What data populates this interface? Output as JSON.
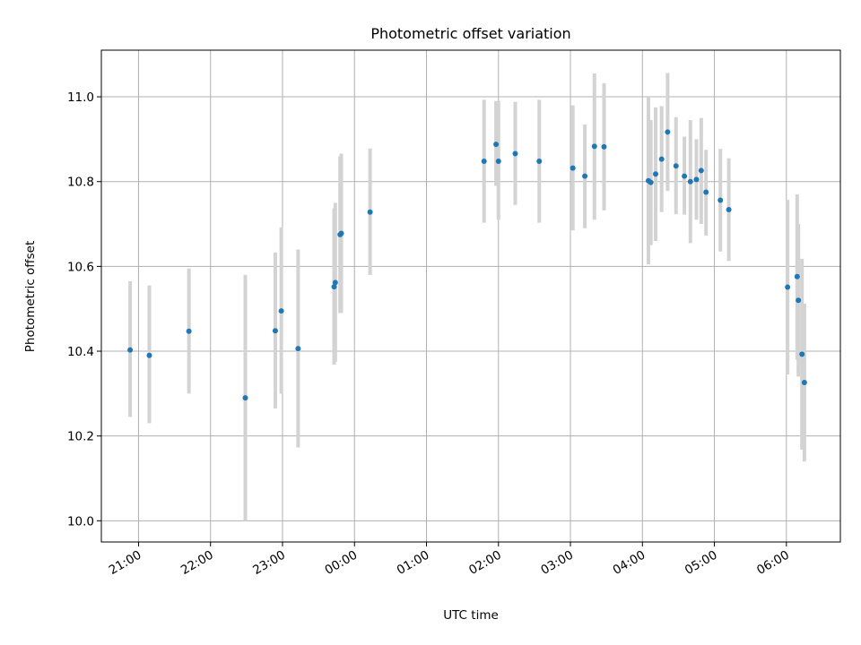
{
  "chart_data": {
    "type": "scatter",
    "title": "Photometric offset variation",
    "xlabel": "UTC time",
    "ylabel": "Photometric offset",
    "x_unit": "UTC hours (times after midnight continue past 24)",
    "xlim": [
      "20:29",
      "30:45"
    ],
    "ylim": [
      9.95,
      11.11
    ],
    "x_ticks": [
      {
        "t": "21:00",
        "label": "21:00"
      },
      {
        "t": "22:00",
        "label": "22:00"
      },
      {
        "t": "23:00",
        "label": "23:00"
      },
      {
        "t": "24:00",
        "label": "00:00"
      },
      {
        "t": "25:00",
        "label": "01:00"
      },
      {
        "t": "26:00",
        "label": "02:00"
      },
      {
        "t": "27:00",
        "label": "03:00"
      },
      {
        "t": "28:00",
        "label": "04:00"
      },
      {
        "t": "29:00",
        "label": "05:00"
      },
      {
        "t": "30:00",
        "label": "06:00"
      }
    ],
    "y_ticks": [
      10.0,
      10.2,
      10.4,
      10.6,
      10.8,
      11.0
    ],
    "y_tick_labels": [
      "10.0",
      "10.2",
      "10.4",
      "10.6",
      "10.8",
      "11.0"
    ],
    "grid": true,
    "legend": "none",
    "colors": {
      "points": "#1f77b4",
      "error_bars": "#d3d3d3",
      "grid": "#b0b0b0"
    },
    "points": [
      {
        "t": "20:53",
        "y": 10.403,
        "lo": 10.245,
        "hi": 10.565
      },
      {
        "t": "21:09",
        "y": 10.39,
        "lo": 10.23,
        "hi": 10.555
      },
      {
        "t": "21:42",
        "y": 10.447,
        "lo": 10.3,
        "hi": 10.595
      },
      {
        "t": "22:29",
        "y": 10.29,
        "lo": 10.0,
        "hi": 10.58
      },
      {
        "t": "22:54",
        "y": 10.448,
        "lo": 10.265,
        "hi": 10.633
      },
      {
        "t": "22:59",
        "y": 10.495,
        "lo": 10.3,
        "hi": 10.692
      },
      {
        "t": "23:13",
        "y": 10.406,
        "lo": 10.173,
        "hi": 10.64
      },
      {
        "t": "23:43",
        "y": 10.552,
        "lo": 10.368,
        "hi": 10.737
      },
      {
        "t": "23:44",
        "y": 10.562,
        "lo": 10.375,
        "hi": 10.75
      },
      {
        "t": "23:48",
        "y": 10.675,
        "lo": 10.49,
        "hi": 10.86
      },
      {
        "t": "23:49",
        "y": 10.678,
        "lo": 10.49,
        "hi": 10.866
      },
      {
        "t": "24:13",
        "y": 10.728,
        "lo": 10.58,
        "hi": 10.878
      },
      {
        "t": "25:48",
        "y": 10.848,
        "lo": 10.703,
        "hi": 10.993
      },
      {
        "t": "25:58",
        "y": 10.888,
        "lo": 10.79,
        "hi": 10.99
      },
      {
        "t": "26:00",
        "y": 10.848,
        "lo": 10.71,
        "hi": 10.99
      },
      {
        "t": "26:14",
        "y": 10.866,
        "lo": 10.745,
        "hi": 10.988
      },
      {
        "t": "26:34",
        "y": 10.848,
        "lo": 10.703,
        "hi": 10.993
      },
      {
        "t": "27:02",
        "y": 10.832,
        "lo": 10.685,
        "hi": 10.98
      },
      {
        "t": "27:12",
        "y": 10.813,
        "lo": 10.69,
        "hi": 10.935
      },
      {
        "t": "27:20",
        "y": 10.883,
        "lo": 10.71,
        "hi": 11.055
      },
      {
        "t": "27:28",
        "y": 10.882,
        "lo": 10.732,
        "hi": 11.032
      },
      {
        "t": "28:05",
        "y": 10.802,
        "lo": 10.605,
        "hi": 11.0
      },
      {
        "t": "28:07",
        "y": 10.798,
        "lo": 10.65,
        "hi": 10.945
      },
      {
        "t": "28:11",
        "y": 10.818,
        "lo": 10.66,
        "hi": 10.975
      },
      {
        "t": "28:16",
        "y": 10.853,
        "lo": 10.728,
        "hi": 10.978
      },
      {
        "t": "28:21",
        "y": 10.917,
        "lo": 10.778,
        "hi": 11.056
      },
      {
        "t": "28:28",
        "y": 10.837,
        "lo": 10.723,
        "hi": 10.952
      },
      {
        "t": "28:35",
        "y": 10.813,
        "lo": 10.722,
        "hi": 10.906
      },
      {
        "t": "28:40",
        "y": 10.8,
        "lo": 10.655,
        "hi": 10.945
      },
      {
        "t": "28:45",
        "y": 10.805,
        "lo": 10.71,
        "hi": 10.9
      },
      {
        "t": "28:49",
        "y": 10.826,
        "lo": 10.7,
        "hi": 10.95
      },
      {
        "t": "28:53",
        "y": 10.775,
        "lo": 10.673,
        "hi": 10.875
      },
      {
        "t": "29:05",
        "y": 10.756,
        "lo": 10.635,
        "hi": 10.877
      },
      {
        "t": "29:12",
        "y": 10.734,
        "lo": 10.613,
        "hi": 10.855
      },
      {
        "t": "30:01",
        "y": 10.551,
        "lo": 10.345,
        "hi": 10.757
      },
      {
        "t": "30:09",
        "y": 10.576,
        "lo": 10.38,
        "hi": 10.77
      },
      {
        "t": "30:10",
        "y": 10.52,
        "lo": 10.34,
        "hi": 10.7
      },
      {
        "t": "30:13",
        "y": 10.393,
        "lo": 10.168,
        "hi": 10.618
      },
      {
        "t": "30:15",
        "y": 10.326,
        "lo": 10.14,
        "hi": 10.512
      }
    ]
  }
}
